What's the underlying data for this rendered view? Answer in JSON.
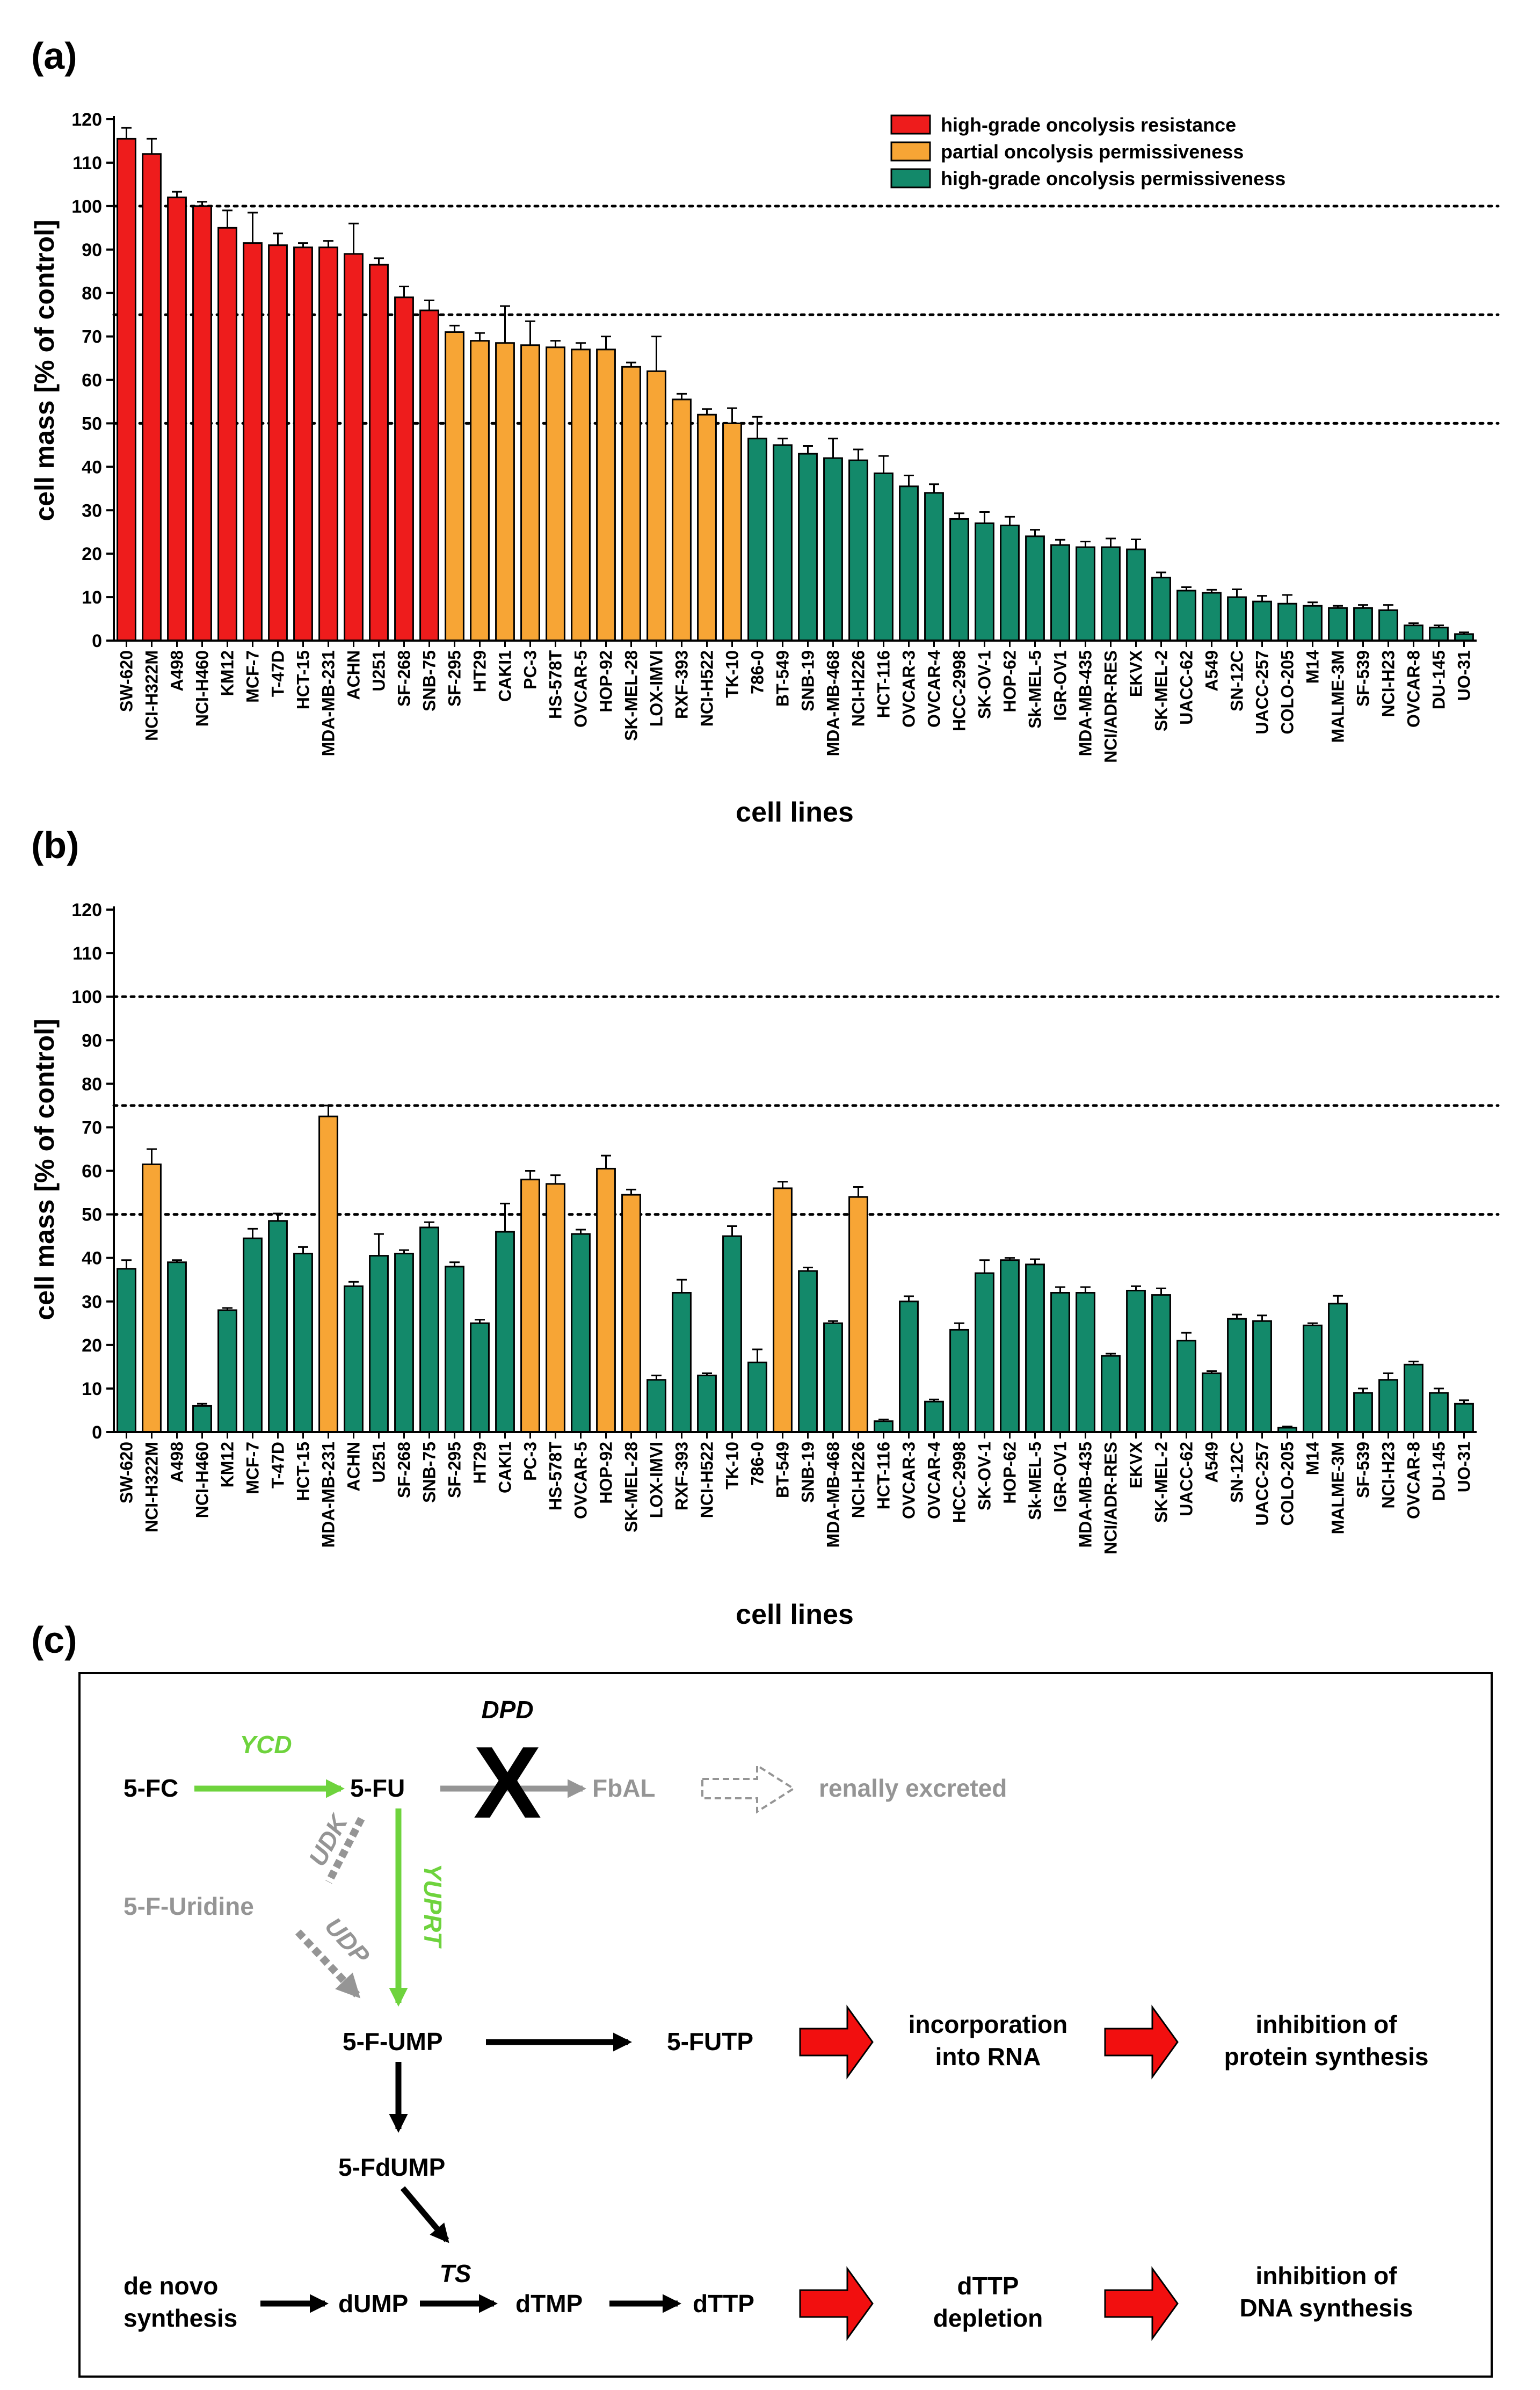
{
  "colors": {
    "resistance": "#ee1c1c",
    "partial": "#f7a535",
    "permissive": "#13896a",
    "black": "#000000",
    "grey": "#959595",
    "green_arrow": "#6ed33d",
    "red_arrow": "#f20f0f"
  },
  "figure": {
    "panels": [
      "(a)",
      "(b)",
      "(c)"
    ],
    "legend": [
      {
        "label": "high-grade oncolysis resistance",
        "color_key": "resistance"
      },
      {
        "label": "partial oncolysis permissiveness",
        "color_key": "partial"
      },
      {
        "label": "high-grade oncolysis permissiveness",
        "color_key": "permissive"
      }
    ]
  },
  "chart_data": [
    {
      "id": "a",
      "type": "bar",
      "title": "",
      "xlabel": "cell lines",
      "ylabel": "cell mass [% of control]",
      "ylim": [
        0,
        120
      ],
      "yticks": [
        0,
        10,
        20,
        30,
        40,
        50,
        60,
        70,
        80,
        90,
        100,
        110,
        120
      ],
      "reference_lines": [
        50,
        75,
        100
      ],
      "categories": [
        "SW-620",
        "NCI-H322M",
        "A498",
        "NCI-H460",
        "KM12",
        "MCF-7",
        "T-47D",
        "HCT-15",
        "MDA-MB-231",
        "ACHN",
        "U251",
        "SF-268",
        "SNB-75",
        "SF-295",
        "HT29",
        "CAKI1",
        "PC-3",
        "HS-578T",
        "OVCAR-5",
        "HOP-92",
        "SK-MEL-28",
        "LOX-IMVI",
        "RXF-393",
        "NCI-H522",
        "TK-10",
        "786-0",
        "BT-549",
        "SNB-19",
        "MDA-MB-468",
        "NCI-H226",
        "HCT-116",
        "OVCAR-3",
        "OVCAR-4",
        "HCC-2998",
        "SK-OV-1",
        "HOP-62",
        "Sk-MEL-5",
        "IGR-OV1",
        "MDA-MB-435",
        "NCI/ADR-RES",
        "EKVX",
        "SK-MEL-2",
        "UACC-62",
        "A549",
        "SN-12C",
        "UACC-257",
        "COLO-205",
        "M14",
        "MALME-3M",
        "SF-539",
        "NCI-H23",
        "OVCAR-8",
        "DU-145",
        "UO-31"
      ],
      "values": [
        115.5,
        112,
        102,
        100,
        95,
        91.5,
        91,
        90.5,
        90.5,
        89,
        86.5,
        79,
        76,
        71,
        69,
        68.5,
        68,
        67.5,
        67,
        67,
        63,
        62,
        55.5,
        52,
        50,
        46.5,
        45,
        43,
        42,
        41.5,
        38.5,
        35.5,
        34,
        28,
        27,
        26.5,
        24,
        22,
        21.5,
        21.5,
        21,
        14.5,
        11.5,
        11,
        10,
        9,
        8.5,
        8,
        7.5,
        7.5,
        7,
        3.5,
        3,
        1.5
      ],
      "errors": [
        2.5,
        3.5,
        1.3,
        1.0,
        4.0,
        7.0,
        2.7,
        1.0,
        1.5,
        7.0,
        1.5,
        2.5,
        2.3,
        1.5,
        1.8,
        8.5,
        5.5,
        1.5,
        1.5,
        3.0,
        1.0,
        8.0,
        1.3,
        1.3,
        3.5,
        5.0,
        1.5,
        1.8,
        4.5,
        2.5,
        4.0,
        2.5,
        2.0,
        1.3,
        2.6,
        2.0,
        1.5,
        1.2,
        1.3,
        2.0,
        2.3,
        1.2,
        0.8,
        0.7,
        1.8,
        1.3,
        2.0,
        0.8,
        0.5,
        0.7,
        1.2,
        0.5,
        0.5,
        0.4
      ],
      "groups": [
        "resistance",
        "resistance",
        "resistance",
        "resistance",
        "resistance",
        "resistance",
        "resistance",
        "resistance",
        "resistance",
        "resistance",
        "resistance",
        "resistance",
        "resistance",
        "partial",
        "partial",
        "partial",
        "partial",
        "partial",
        "partial",
        "partial",
        "partial",
        "partial",
        "partial",
        "partial",
        "partial",
        "permissive",
        "permissive",
        "permissive",
        "permissive",
        "permissive",
        "permissive",
        "permissive",
        "permissive",
        "permissive",
        "permissive",
        "permissive",
        "permissive",
        "permissive",
        "permissive",
        "permissive",
        "permissive",
        "permissive",
        "permissive",
        "permissive",
        "permissive",
        "permissive",
        "permissive",
        "permissive",
        "permissive",
        "permissive",
        "permissive",
        "permissive",
        "permissive",
        "permissive"
      ]
    },
    {
      "id": "b",
      "type": "bar",
      "title": "",
      "xlabel": "cell lines",
      "ylabel": "cell mass [% of control]",
      "ylim": [
        0,
        120
      ],
      "yticks": [
        0,
        10,
        20,
        30,
        40,
        50,
        60,
        70,
        80,
        90,
        100,
        110,
        120
      ],
      "reference_lines": [
        50,
        75,
        100
      ],
      "categories": [
        "SW-620",
        "NCI-H322M",
        "A498",
        "NCI-H460",
        "KM12",
        "MCF-7",
        "T-47D",
        "HCT-15",
        "MDA-MB-231",
        "ACHN",
        "U251",
        "SF-268",
        "SNB-75",
        "SF-295",
        "HT29",
        "CAKI1",
        "PC-3",
        "HS-578T",
        "OVCAR-5",
        "HOP-92",
        "SK-MEL-28",
        "LOX-IMVI",
        "RXF-393",
        "NCI-H522",
        "TK-10",
        "786-0",
        "BT-549",
        "SNB-19",
        "MDA-MB-468",
        "NCI-H226",
        "HCT-116",
        "OVCAR-3",
        "OVCAR-4",
        "HCC-2998",
        "SK-OV-1",
        "HOP-62",
        "Sk-MEL-5",
        "IGR-OV1",
        "MDA-MB-435",
        "NCI/ADR-RES",
        "EKVX",
        "SK-MEL-2",
        "UACC-62",
        "A549",
        "SN-12C",
        "UACC-257",
        "COLO-205",
        "M14",
        "MALME-3M",
        "SF-539",
        "NCI-H23",
        "OVCAR-8",
        "DU-145",
        "UO-31"
      ],
      "values": [
        37.5,
        61.5,
        39,
        6,
        28,
        44.5,
        48.5,
        41,
        72.5,
        33.5,
        40.5,
        41,
        47,
        38,
        25,
        46,
        58,
        57,
        45.5,
        60.5,
        54.5,
        12,
        32,
        13,
        45,
        16,
        56,
        37,
        25,
        54,
        2.5,
        30,
        7,
        23.5,
        36.5,
        39.5,
        38.5,
        32,
        32,
        17.5,
        32.5,
        31.5,
        21,
        13.5,
        26,
        25.5,
        1,
        24.5,
        29.5,
        9,
        12,
        15.5,
        9,
        6.5
      ],
      "errors": [
        2.0,
        3.5,
        0.5,
        0.5,
        0.5,
        2.2,
        1.7,
        1.5,
        2.5,
        1.0,
        5.0,
        0.8,
        1.2,
        1.0,
        0.8,
        6.5,
        2.0,
        2.0,
        1.0,
        3.0,
        1.2,
        1.0,
        3.0,
        0.5,
        2.3,
        3.0,
        1.5,
        0.8,
        0.5,
        2.3,
        0.4,
        1.2,
        0.5,
        1.5,
        3.0,
        0.5,
        1.2,
        1.3,
        1.3,
        0.5,
        1.0,
        1.5,
        1.8,
        0.5,
        1.0,
        1.3,
        0.3,
        0.5,
        1.8,
        1.0,
        1.5,
        0.7,
        1.0,
        0.8
      ],
      "groups": [
        "permissive",
        "partial",
        "permissive",
        "permissive",
        "permissive",
        "permissive",
        "permissive",
        "permissive",
        "partial",
        "permissive",
        "permissive",
        "permissive",
        "permissive",
        "permissive",
        "permissive",
        "permissive",
        "partial",
        "partial",
        "permissive",
        "partial",
        "partial",
        "permissive",
        "permissive",
        "permissive",
        "permissive",
        "permissive",
        "partial",
        "permissive",
        "permissive",
        "partial",
        "permissive",
        "permissive",
        "permissive",
        "permissive",
        "permissive",
        "permissive",
        "permissive",
        "permissive",
        "permissive",
        "permissive",
        "permissive",
        "permissive",
        "permissive",
        "permissive",
        "permissive",
        "permissive",
        "permissive",
        "permissive",
        "permissive",
        "permissive",
        "permissive",
        "permissive",
        "permissive",
        "permissive"
      ]
    }
  ],
  "pathway": {
    "nodes": {
      "fc": "5-FC",
      "fu": "5-FU",
      "fbal": "FbAL",
      "renal": "renally excreted",
      "furidine": "5-F-Uridine",
      "fump": "5-F-UMP",
      "futp": "5-FUTP",
      "rna_line1": "incorporation",
      "rna_line2": "into RNA",
      "protein_line1": "inhibition of",
      "protein_line2": "protein synthesis",
      "fdump": "5-FdUMP",
      "denovo_line1": "de novo",
      "denovo_line2": "synthesis",
      "dump": "dUMP",
      "dtmp": "dTMP",
      "dttp": "dTTP",
      "depletion_line1": "dTTP",
      "depletion_line2": "depletion",
      "dna_line1": "inhibition of",
      "dna_line2": "DNA synthesis"
    },
    "enzymes": {
      "ycd": "YCD",
      "dpd": "DPD",
      "udk": "UDK",
      "udp": "UDP",
      "yuprt": "YUPRT",
      "ts": "TS"
    },
    "blocked_symbol": "X"
  }
}
